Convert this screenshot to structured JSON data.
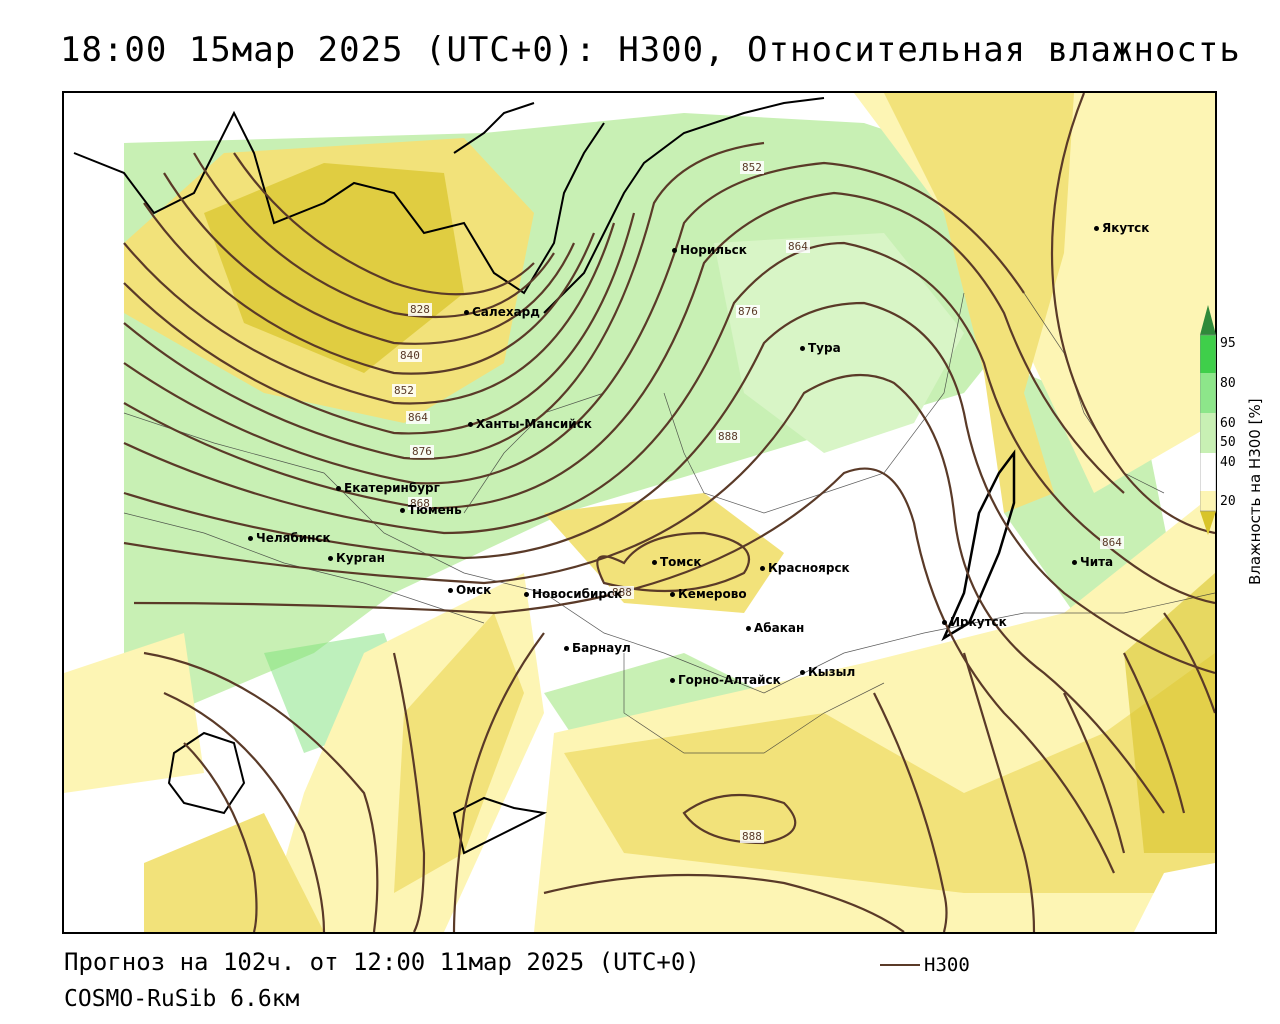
{
  "title": "18:00 15мар 2025 (UTC+0): H300, Относительная влажность",
  "footer": {
    "forecast": "Прогноз на 102ч. от 12:00 11мар 2025 (UTC+0)",
    "model": "COSMO-RuSib 6.6км",
    "legend_label": "H300"
  },
  "colors": {
    "contour": "#5a3a28",
    "yellow_light": "#fdf5b4",
    "yellow_mid": "#f2e27a",
    "yellow_dark": "#d8c42a",
    "green_light": "#c8f0b4",
    "green_mid": "#7ee27a",
    "green_dark": "#2fb84a"
  },
  "colorbar": {
    "title": "Влажность на H300 [%]",
    "ticks": [
      "95",
      "80",
      "60",
      "50",
      "40",
      "20"
    ]
  },
  "cities": [
    {
      "name": "Якутск"
    },
    {
      "name": "Норильск"
    },
    {
      "name": "Салехард"
    },
    {
      "name": "Тура"
    },
    {
      "name": "Ханты-Мансийск"
    },
    {
      "name": "Екатеринбург"
    },
    {
      "name": "Тюмень"
    },
    {
      "name": "Челябинск"
    },
    {
      "name": "Курган"
    },
    {
      "name": "Омск"
    },
    {
      "name": "Новосибирск"
    },
    {
      "name": "Томск"
    },
    {
      "name": "Кемерово"
    },
    {
      "name": "Красноярск"
    },
    {
      "name": "Абакан"
    },
    {
      "name": "Барнаул"
    },
    {
      "name": "Горно-Алтайск"
    },
    {
      "name": "Кызыл"
    },
    {
      "name": "Иркутск"
    },
    {
      "name": "Чита"
    }
  ],
  "isolines": [
    "852",
    "864",
    "876",
    "828",
    "840",
    "852",
    "864",
    "876",
    "888",
    "868",
    "888",
    "864",
    "888"
  ]
}
